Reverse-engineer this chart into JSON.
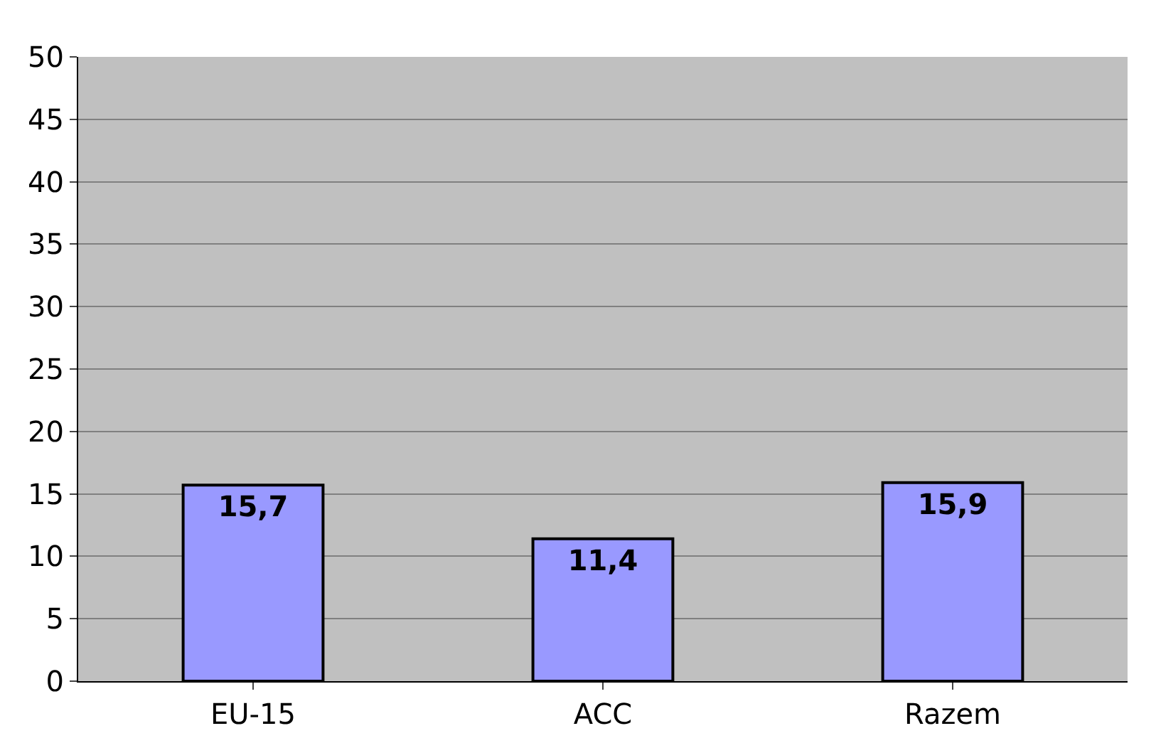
{
  "chart_data": {
    "type": "bar",
    "categories": [
      "EU-15",
      "ACC",
      "Razem"
    ],
    "values": [
      15.7,
      11.4,
      15.9
    ],
    "value_labels": [
      "15,7",
      "11,4",
      "15,9"
    ],
    "color": "#9999ff",
    "ylim": [
      0,
      50
    ],
    "yticks": [
      0,
      5,
      10,
      15,
      20,
      25,
      30,
      35,
      40,
      45,
      50
    ],
    "grid": "y"
  }
}
